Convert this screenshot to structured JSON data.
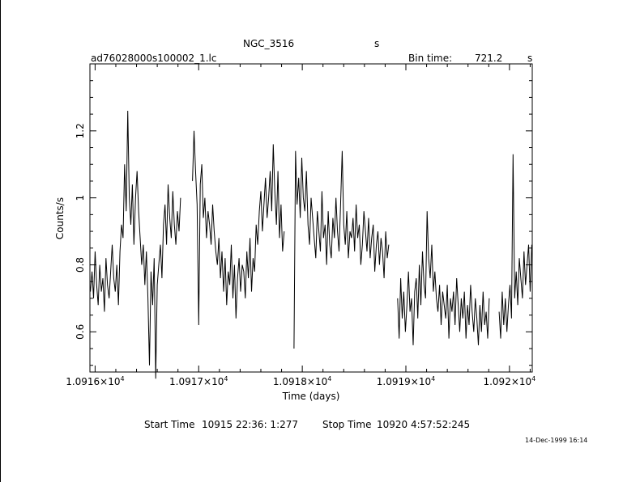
{
  "header": {
    "object": "NGC_3516",
    "object_unit": "s",
    "filename": "ad76028000s100002_1.lc",
    "bin_label": "Bin time:",
    "bin_value": "721.2",
    "bin_unit": "s"
  },
  "footer": {
    "start_label": "Start Time",
    "start_value": "10915 22:36: 1:277",
    "stop_label": "Stop Time",
    "stop_value": "10920  4:57:52:245",
    "stamp": "14-Dec-1999 16:14"
  },
  "chart_data": {
    "type": "line",
    "title": "NGC_3516",
    "xlabel": "Time (days)",
    "ylabel": "Counts/s",
    "xlim": [
      10915.95,
      10920.22
    ],
    "ylim": [
      0.48,
      1.4
    ],
    "grid": false,
    "xticks": [
      {
        "value": 10916,
        "mant": "1.0916×10",
        "exp": "4"
      },
      {
        "value": 10917,
        "mant": "1.0917×10",
        "exp": "4"
      },
      {
        "value": 10918,
        "mant": "1.0918×10",
        "exp": "4"
      },
      {
        "value": 10919,
        "mant": "1.0919×10",
        "exp": "4"
      },
      {
        "value": 10920,
        "mant": "1.092×10",
        "exp": "4"
      }
    ],
    "yticks": [
      {
        "value": 0.6,
        "label": "0.6"
      },
      {
        "value": 0.8,
        "label": "0.8"
      },
      {
        "value": 1.0,
        "label": "1"
      },
      {
        "value": 1.2,
        "label": "1.2"
      }
    ],
    "series": [
      {
        "segments": [
          {
            "x": [
              10915.955,
              10915.97,
              10915.985,
              10916.0,
              10916.015,
              10916.03,
              10916.045,
              10916.06,
              10916.075,
              10916.09,
              10916.105,
              10916.12,
              10916.135,
              10916.15,
              10916.165,
              10916.18,
              10916.195,
              10916.21,
              10916.225,
              10916.24,
              10916.255,
              10916.27,
              10916.285,
              10916.3,
              10916.315,
              10916.33,
              10916.345,
              10916.36,
              10916.375,
              10916.39,
              10916.405,
              10916.42,
              10916.435,
              10916.45,
              10916.465,
              10916.48,
              10916.495,
              10916.51,
              10916.525,
              10916.54,
              10916.555,
              10916.57,
              10916.585,
              10916.6,
              10916.615,
              10916.63,
              10916.645,
              10916.66,
              10916.675,
              10916.69,
              10916.705,
              10916.72,
              10916.735,
              10916.75,
              10916.765,
              10916.78,
              10916.795,
              10916.81,
              10916.825
            ],
            "y": [
              0.72,
              0.78,
              0.7,
              0.84,
              0.74,
              0.68,
              0.8,
              0.72,
              0.76,
              0.66,
              0.82,
              0.74,
              0.7,
              0.78,
              0.86,
              0.76,
              0.72,
              0.8,
              0.68,
              0.84,
              0.92,
              0.88,
              1.1,
              0.96,
              1.26,
              1.0,
              0.92,
              1.04,
              0.86,
              1.0,
              1.08,
              0.96,
              0.88,
              0.8,
              0.86,
              0.74,
              0.84,
              0.7,
              0.5,
              0.78,
              0.68,
              0.82,
              0.46,
              0.74,
              0.8,
              0.86,
              0.76,
              0.92,
              0.98,
              0.86,
              1.04,
              0.94,
              0.88,
              1.02,
              0.92,
              0.86,
              0.96,
              0.9,
              1.0
            ]
          },
          {
            "x": [
              10916.94,
              10916.955,
              10916.97,
              10916.985,
              10917.0,
              10917.015,
              10917.03,
              10917.045,
              10917.06,
              10917.075,
              10917.09,
              10917.105,
              10917.12,
              10917.135,
              10917.15,
              10917.165,
              10917.18,
              10917.195,
              10917.21,
              10917.225,
              10917.24,
              10917.255,
              10917.27,
              10917.285,
              10917.3,
              10917.315,
              10917.33,
              10917.345,
              10917.36,
              10917.375,
              10917.39,
              10917.405,
              10917.42,
              10917.435,
              10917.45,
              10917.465,
              10917.48,
              10917.495,
              10917.51,
              10917.525,
              10917.54,
              10917.555,
              10917.57,
              10917.585,
              10917.6,
              10917.615,
              10917.63,
              10917.645,
              10917.66,
              10917.675,
              10917.69,
              10917.705,
              10917.72,
              10917.735,
              10917.75,
              10917.765,
              10917.78,
              10917.795,
              10917.81,
              10917.825
            ],
            "y": [
              1.05,
              1.2,
              1.08,
              0.98,
              0.62,
              1.04,
              1.1,
              0.94,
              1.0,
              0.88,
              0.96,
              0.92,
              0.86,
              0.98,
              0.9,
              0.84,
              0.8,
              0.88,
              0.76,
              0.84,
              0.72,
              0.82,
              0.68,
              0.78,
              0.74,
              0.86,
              0.7,
              0.8,
              0.64,
              0.76,
              0.82,
              0.72,
              0.8,
              0.78,
              0.7,
              0.84,
              0.76,
              0.88,
              0.72,
              0.82,
              0.78,
              0.92,
              0.86,
              0.96,
              1.02,
              0.9,
              0.98,
              1.06,
              0.94,
              1.0,
              1.08,
              0.96,
              1.16,
              1.02,
              0.92,
              1.08,
              0.88,
              0.98,
              0.84,
              0.9
            ]
          },
          {
            "x": [
              10917.92,
              10917.935,
              10917.95,
              10917.965,
              10917.98,
              10917.995,
              10918.01,
              10918.025,
              10918.04,
              10918.055,
              10918.07,
              10918.085,
              10918.1,
              10918.115,
              10918.13,
              10918.145,
              10918.16,
              10918.175,
              10918.19,
              10918.205,
              10918.22,
              10918.235,
              10918.25,
              10918.265,
              10918.28,
              10918.295,
              10918.31,
              10918.325,
              10918.34,
              10918.355,
              10918.37,
              10918.385,
              10918.4,
              10918.415,
              10918.43,
              10918.445,
              10918.46,
              10918.475,
              10918.49,
              10918.505,
              10918.52,
              10918.535,
              10918.55,
              10918.565,
              10918.58,
              10918.595,
              10918.61,
              10918.625,
              10918.64,
              10918.655,
              10918.67,
              10918.685,
              10918.7,
              10918.715,
              10918.73,
              10918.745,
              10918.76,
              10918.775,
              10918.79,
              10918.805,
              10918.82,
              10918.835
            ],
            "y": [
              0.55,
              1.14,
              0.98,
              1.06,
              0.94,
              1.12,
              1.0,
              0.96,
              1.08,
              0.92,
              0.86,
              1.0,
              0.94,
              0.88,
              0.82,
              0.96,
              0.9,
              0.84,
              1.02,
              0.88,
              0.92,
              0.8,
              0.96,
              0.86,
              0.82,
              0.94,
              0.88,
              1.0,
              0.9,
              0.84,
              0.98,
              1.14,
              0.92,
              0.86,
              0.96,
              0.82,
              0.9,
              0.88,
              0.94,
              0.84,
              0.98,
              0.88,
              0.92,
              0.8,
              0.86,
              0.96,
              0.9,
              0.84,
              0.94,
              0.82,
              0.88,
              0.92,
              0.78,
              0.86,
              0.9,
              0.8,
              0.88,
              0.84,
              0.76,
              0.9,
              0.82,
              0.86
            ]
          },
          {
            "x": [
              10918.92,
              10918.935,
              10918.95,
              10918.965,
              10918.98,
              10918.995,
              10919.01,
              10919.025,
              10919.04,
              10919.055,
              10919.07,
              10919.085,
              10919.1,
              10919.115,
              10919.13,
              10919.145,
              10919.16,
              10919.175,
              10919.19,
              10919.205,
              10919.22,
              10919.235,
              10919.25,
              10919.265,
              10919.28,
              10919.295,
              10919.31,
              10919.325,
              10919.34,
              10919.355,
              10919.37,
              10919.385,
              10919.4,
              10919.415,
              10919.43,
              10919.445,
              10919.46,
              10919.475,
              10919.49,
              10919.505,
              10919.52,
              10919.535,
              10919.55,
              10919.565,
              10919.58,
              10919.595,
              10919.61,
              10919.625,
              10919.64,
              10919.655,
              10919.67,
              10919.685,
              10919.7,
              10919.715,
              10919.73,
              10919.745,
              10919.76,
              10919.775,
              10919.79,
              10919.805
            ],
            "y": [
              0.7,
              0.58,
              0.76,
              0.64,
              0.72,
              0.6,
              0.68,
              0.78,
              0.66,
              0.7,
              0.56,
              0.72,
              0.76,
              0.64,
              0.8,
              0.68,
              0.84,
              0.74,
              0.7,
              0.96,
              0.82,
              0.76,
              0.86,
              0.72,
              0.78,
              0.7,
              0.66,
              0.74,
              0.62,
              0.72,
              0.68,
              0.64,
              0.74,
              0.58,
              0.7,
              0.66,
              0.72,
              0.62,
              0.76,
              0.68,
              0.6,
              0.7,
              0.64,
              0.72,
              0.58,
              0.68,
              0.62,
              0.74,
              0.66,
              0.6,
              0.7,
              0.64,
              0.56,
              0.68,
              0.6,
              0.72,
              0.62,
              0.66,
              0.58,
              0.7
            ]
          },
          {
            "x": [
              10919.9,
              10919.915,
              10919.93,
              10919.945,
              10919.96,
              10919.975,
              10919.99,
              10920.005,
              10920.02,
              10920.035,
              10920.05,
              10920.065,
              10920.08,
              10920.095,
              10920.11,
              10920.125,
              10920.14,
              10920.155,
              10920.17,
              10920.185,
              10920.2,
              10920.215
            ],
            "y": [
              0.66,
              0.58,
              0.72,
              0.62,
              0.7,
              0.6,
              0.68,
              0.74,
              0.64,
              1.13,
              0.7,
              0.78,
              0.68,
              0.82,
              0.76,
              0.7,
              0.84,
              0.74,
              0.8,
              0.86,
              0.72,
              0.86
            ]
          }
        ]
      }
    ]
  }
}
